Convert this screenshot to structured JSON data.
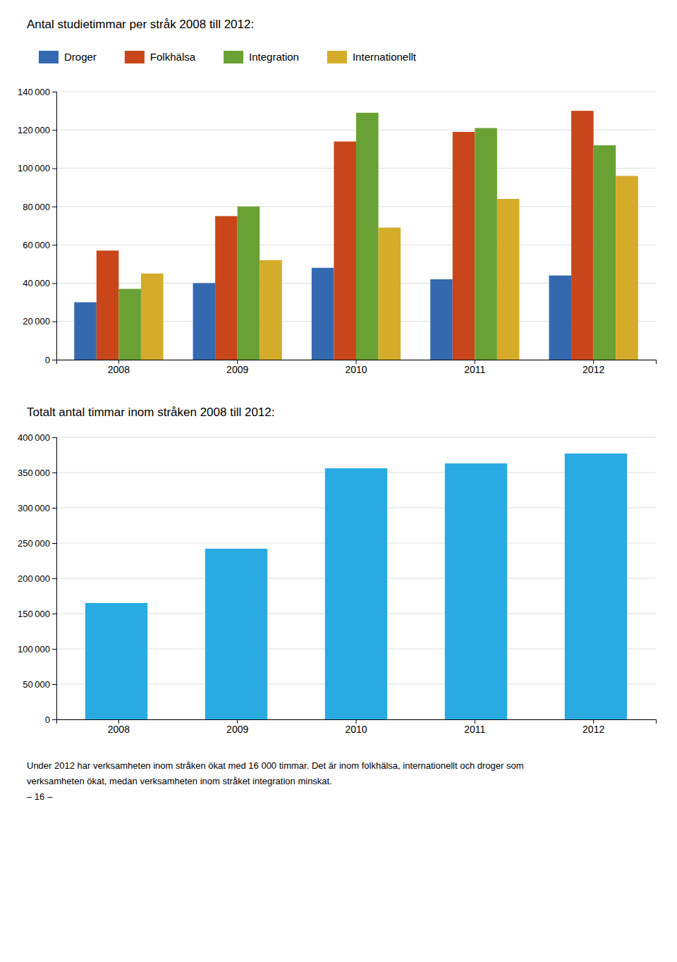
{
  "chart_data": [
    {
      "type": "bar",
      "title": "Antal studietimmar per stråk 2008 till 2012:",
      "categories": [
        "2008",
        "2009",
        "2010",
        "2011",
        "2012"
      ],
      "series": [
        {
          "name": "Droger",
          "color": "#3469b0",
          "values": [
            30000,
            40000,
            48000,
            42000,
            44000
          ]
        },
        {
          "name": "Folkhälsa",
          "color": "#c8461a",
          "values": [
            57000,
            75000,
            114000,
            119000,
            130000
          ]
        },
        {
          "name": "Integration",
          "color": "#6aa134",
          "values": [
            37000,
            80000,
            129000,
            121000,
            112000
          ]
        },
        {
          "name": "Internationellt",
          "color": "#d4ac2a",
          "values": [
            45000,
            52000,
            69000,
            84000,
            96000
          ]
        }
      ],
      "ylim": [
        0,
        140000
      ],
      "yticks": [
        0,
        {
          "value": 20000,
          "label": "20 000"
        },
        {
          "value": 40000,
          "label": "40 000"
        },
        {
          "value": 60000,
          "label": "60 000"
        },
        {
          "value": 80000,
          "label": "80 000"
        },
        {
          "value": 100000,
          "label": "100 000"
        },
        {
          "value": 120000,
          "label": "120 000"
        },
        {
          "value": 140000,
          "label": "140 000"
        }
      ],
      "grid": true,
      "legend": "top"
    },
    {
      "type": "bar",
      "title": "Totalt antal timmar inom stråken 2008 till 2012:",
      "categories": [
        "2008",
        "2009",
        "2010",
        "2011",
        "2012"
      ],
      "values": [
        165000,
        242000,
        356000,
        363000,
        377000
      ],
      "color": "#29abe2",
      "ylim": [
        0,
        400000
      ],
      "yticks": [
        0,
        {
          "value": 50000,
          "label": "50 000"
        },
        {
          "value": 100000,
          "label": "100 000"
        },
        {
          "value": 150000,
          "label": "150 000"
        },
        {
          "value": 200000,
          "label": "200 000"
        },
        {
          "value": 250000,
          "label": "250 000"
        },
        {
          "value": 300000,
          "label": "300 000"
        },
        {
          "value": 350000,
          "label": "350 000"
        },
        {
          "value": 400000,
          "label": "400 000"
        }
      ],
      "grid": true,
      "annotations": [
        "Under 2012 har verksamheten inom stråken ökat med 16 000 timmar. Det är inom folkhälsa, internationellt och droger som",
        "verksamheten ökat, medan verksamheten  inom stråket integration minskat.",
        "– 16 –"
      ]
    }
  ]
}
